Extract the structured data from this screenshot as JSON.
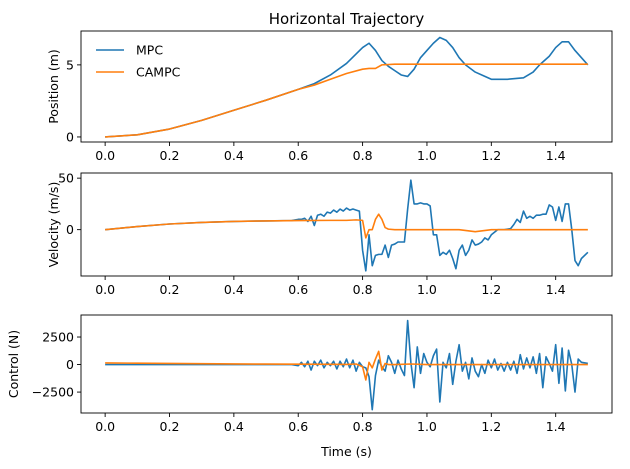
{
  "chart_data": [
    {
      "type": "line",
      "title": "Horizontal Trajectory",
      "xlabel": "",
      "ylabel": "Position (m)",
      "xlim": [
        -0.075,
        1.575
      ],
      "ylim": [
        -0.35,
        7.35
      ],
      "xticks": [
        0.0,
        0.2,
        0.4,
        0.6,
        0.8,
        1.0,
        1.2,
        1.4
      ],
      "xtick_labels": [
        "0.0",
        "0.2",
        "0.4",
        "0.6",
        "0.8",
        "1.0",
        "1.2",
        "1.4"
      ],
      "yticks": [
        0,
        5
      ],
      "ytick_labels": [
        "0",
        "5"
      ],
      "legend": "top-left",
      "series": [
        {
          "name": "MPC",
          "color": "#1f77b4",
          "x": [
            0.0,
            0.1,
            0.2,
            0.3,
            0.4,
            0.5,
            0.6,
            0.65,
            0.7,
            0.75,
            0.8,
            0.82,
            0.84,
            0.86,
            0.88,
            0.9,
            0.92,
            0.94,
            0.96,
            0.98,
            1.0,
            1.02,
            1.04,
            1.06,
            1.08,
            1.1,
            1.12,
            1.15,
            1.18,
            1.2,
            1.25,
            1.3,
            1.33,
            1.35,
            1.38,
            1.4,
            1.42,
            1.44,
            1.46,
            1.48,
            1.5
          ],
          "y": [
            0.0,
            0.15,
            0.55,
            1.15,
            1.85,
            2.55,
            3.3,
            3.7,
            4.3,
            5.1,
            6.2,
            6.5,
            6.0,
            5.3,
            4.9,
            4.6,
            4.3,
            4.2,
            4.7,
            5.5,
            6.0,
            6.5,
            6.9,
            6.7,
            6.2,
            5.5,
            5.0,
            4.5,
            4.2,
            4.0,
            4.0,
            4.1,
            4.5,
            5.0,
            5.6,
            6.2,
            6.6,
            6.6,
            6.0,
            5.5,
            5.0
          ]
        },
        {
          "name": "CAMPC",
          "color": "#ff7f0e",
          "x": [
            0.0,
            0.1,
            0.2,
            0.3,
            0.4,
            0.5,
            0.6,
            0.65,
            0.7,
            0.75,
            0.8,
            0.82,
            0.84,
            0.86,
            0.9,
            1.0,
            1.1,
            1.2,
            1.3,
            1.4,
            1.5
          ],
          "y": [
            0.0,
            0.15,
            0.55,
            1.15,
            1.85,
            2.55,
            3.3,
            3.6,
            4.0,
            4.4,
            4.7,
            4.75,
            4.75,
            5.0,
            5.05,
            5.05,
            5.05,
            5.05,
            5.05,
            5.05,
            5.05
          ]
        }
      ]
    },
    {
      "type": "line",
      "title": "",
      "xlabel": "",
      "ylabel": "Velocity (m/s)",
      "xlim": [
        -0.075,
        1.575
      ],
      "ylim": [
        -45,
        55
      ],
      "xticks": [
        0.0,
        0.2,
        0.4,
        0.6,
        0.8,
        1.0,
        1.2,
        1.4
      ],
      "xtick_labels": [
        "0.0",
        "0.2",
        "0.4",
        "0.6",
        "0.8",
        "1.0",
        "1.2",
        "1.4"
      ],
      "yticks": [
        0,
        50
      ],
      "ytick_labels": [
        "0",
        "50"
      ],
      "series": [
        {
          "name": "MPC",
          "color": "#1f77b4",
          "x": [
            0.0,
            0.1,
            0.2,
            0.3,
            0.4,
            0.5,
            0.58,
            0.6,
            0.61,
            0.62,
            0.63,
            0.64,
            0.65,
            0.66,
            0.67,
            0.68,
            0.69,
            0.7,
            0.71,
            0.72,
            0.73,
            0.74,
            0.75,
            0.76,
            0.77,
            0.78,
            0.79,
            0.8,
            0.81,
            0.82,
            0.83,
            0.84,
            0.85,
            0.86,
            0.87,
            0.88,
            0.89,
            0.9,
            0.91,
            0.92,
            0.93,
            0.94,
            0.95,
            0.96,
            0.97,
            0.98,
            0.99,
            1.0,
            1.01,
            1.02,
            1.03,
            1.04,
            1.05,
            1.06,
            1.07,
            1.08,
            1.09,
            1.1,
            1.11,
            1.12,
            1.13,
            1.14,
            1.15,
            1.16,
            1.17,
            1.18,
            1.19,
            1.2,
            1.22,
            1.24,
            1.26,
            1.27,
            1.28,
            1.29,
            1.3,
            1.31,
            1.32,
            1.33,
            1.34,
            1.35,
            1.36,
            1.37,
            1.38,
            1.39,
            1.4,
            1.41,
            1.42,
            1.43,
            1.44,
            1.45,
            1.46,
            1.47,
            1.48,
            1.5
          ],
          "y": [
            0.0,
            3.0,
            5.5,
            7.0,
            8.0,
            8.5,
            8.8,
            10.0,
            10.0,
            11.0,
            8.0,
            13.0,
            4.0,
            14.0,
            15.0,
            13.0,
            17.0,
            16.0,
            19.0,
            17.0,
            20.0,
            18.0,
            21.0,
            19.0,
            20.0,
            19.0,
            18.0,
            -20.0,
            -40.0,
            -5.0,
            -35.0,
            -25.0,
            -24.0,
            -24.0,
            -15.0,
            -27.0,
            -15.0,
            -14.0,
            -12.0,
            -12.0,
            -12.0,
            20.0,
            48.0,
            25.0,
            25.0,
            26.0,
            25.0,
            25.0,
            23.0,
            -5.0,
            -5.0,
            -25.0,
            -22.0,
            -24.0,
            -20.0,
            -28.0,
            -38.0,
            -20.0,
            -15.0,
            -25.0,
            -20.0,
            -10.0,
            -15.0,
            -14.0,
            -12.0,
            -8.0,
            -10.0,
            -5.0,
            0.0,
            0.0,
            1.0,
            5.0,
            10.0,
            7.0,
            18.0,
            11.0,
            13.0,
            11.0,
            14.0,
            14.0,
            15.0,
            15.0,
            24.0,
            22.0,
            9.0,
            22.0,
            8.0,
            25.0,
            25.0,
            0.0,
            -30.0,
            -35.0,
            -28.0,
            -22.0
          ]
        },
        {
          "name": "CAMPC",
          "color": "#ff7f0e",
          "x": [
            0.0,
            0.1,
            0.2,
            0.3,
            0.4,
            0.5,
            0.6,
            0.7,
            0.75,
            0.78,
            0.8,
            0.81,
            0.82,
            0.83,
            0.84,
            0.85,
            0.86,
            0.87,
            0.88,
            0.9,
            1.0,
            1.1,
            1.15,
            1.2,
            1.3,
            1.4,
            1.5
          ],
          "y": [
            0.0,
            3.0,
            5.5,
            7.0,
            8.0,
            8.5,
            8.8,
            9.0,
            9.0,
            9.5,
            9.0,
            -8.0,
            0.0,
            0.0,
            10.0,
            15.0,
            10.0,
            2.0,
            0.5,
            0.0,
            0.0,
            0.0,
            -2.0,
            0.0,
            0.0,
            0.0,
            0.0
          ]
        }
      ]
    },
    {
      "type": "line",
      "title": "",
      "xlabel": "Time (s)",
      "ylabel": "Control (N)",
      "xlim": [
        -0.075,
        1.575
      ],
      "ylim": [
        -4400,
        4500
      ],
      "xticks": [
        0.0,
        0.2,
        0.4,
        0.6,
        0.8,
        1.0,
        1.2,
        1.4
      ],
      "xtick_labels": [
        "0.0",
        "0.2",
        "0.4",
        "0.6",
        "0.8",
        "1.0",
        "1.2",
        "1.4"
      ],
      "yticks": [
        -2500,
        0,
        2500
      ],
      "ytick_labels": [
        "−2500",
        "0",
        "2500"
      ],
      "series": [
        {
          "name": "MPC",
          "color": "#1f77b4",
          "x": [
            0.0,
            0.1,
            0.2,
            0.3,
            0.4,
            0.5,
            0.58,
            0.6,
            0.61,
            0.62,
            0.63,
            0.64,
            0.65,
            0.66,
            0.67,
            0.68,
            0.69,
            0.7,
            0.71,
            0.72,
            0.73,
            0.74,
            0.75,
            0.76,
            0.77,
            0.78,
            0.79,
            0.8,
            0.81,
            0.82,
            0.83,
            0.84,
            0.85,
            0.86,
            0.87,
            0.88,
            0.89,
            0.9,
            0.91,
            0.92,
            0.93,
            0.94,
            0.95,
            0.96,
            0.97,
            0.98,
            0.99,
            1.0,
            1.01,
            1.02,
            1.03,
            1.04,
            1.05,
            1.06,
            1.07,
            1.08,
            1.09,
            1.1,
            1.11,
            1.12,
            1.13,
            1.14,
            1.15,
            1.16,
            1.17,
            1.18,
            1.19,
            1.2,
            1.21,
            1.22,
            1.23,
            1.24,
            1.25,
            1.26,
            1.27,
            1.28,
            1.29,
            1.3,
            1.31,
            1.32,
            1.33,
            1.34,
            1.35,
            1.36,
            1.37,
            1.38,
            1.39,
            1.4,
            1.41,
            1.42,
            1.43,
            1.44,
            1.45,
            1.46,
            1.47,
            1.48,
            1.5
          ],
          "y": [
            0,
            0,
            0,
            0,
            0,
            0,
            0,
            -100,
            200,
            -200,
            300,
            -500,
            300,
            -100,
            400,
            -300,
            200,
            -100,
            300,
            -400,
            300,
            -200,
            500,
            -300,
            400,
            -600,
            200,
            -200,
            -300,
            -1100,
            -4100,
            -1000,
            400,
            -200,
            -600,
            800,
            200,
            -800,
            400,
            -400,
            -1000,
            4000,
            200,
            -2100,
            1600,
            -800,
            1000,
            200,
            -200,
            800,
            1400,
            -3400,
            200,
            -300,
            1000,
            -1800,
            300,
            1800,
            -600,
            200,
            -1300,
            600,
            -600,
            -1100,
            0,
            -800,
            400,
            -300,
            500,
            -500,
            100,
            -600,
            200,
            -500,
            300,
            -800,
            900,
            -400,
            600,
            -300,
            700,
            -800,
            1000,
            -2100,
            700,
            100,
            -600,
            1800,
            -1700,
            1500,
            -2400,
            1300,
            0,
            -2500,
            500,
            200,
            100
          ]
        },
        {
          "name": "CAMPC",
          "color": "#ff7f0e",
          "x": [
            0.0,
            0.1,
            0.2,
            0.3,
            0.4,
            0.5,
            0.6,
            0.7,
            0.75,
            0.78,
            0.8,
            0.81,
            0.82,
            0.83,
            0.84,
            0.85,
            0.86,
            0.87,
            0.88,
            0.9,
            0.95,
            1.0,
            1.1,
            1.2,
            1.3,
            1.4,
            1.5
          ],
          "y": [
            150,
            120,
            100,
            80,
            60,
            40,
            30,
            20,
            10,
            50,
            -200,
            -1400,
            200,
            -300,
            500,
            1200,
            -500,
            100,
            0,
            0,
            50,
            0,
            0,
            0,
            0,
            0,
            0
          ]
        }
      ]
    }
  ]
}
